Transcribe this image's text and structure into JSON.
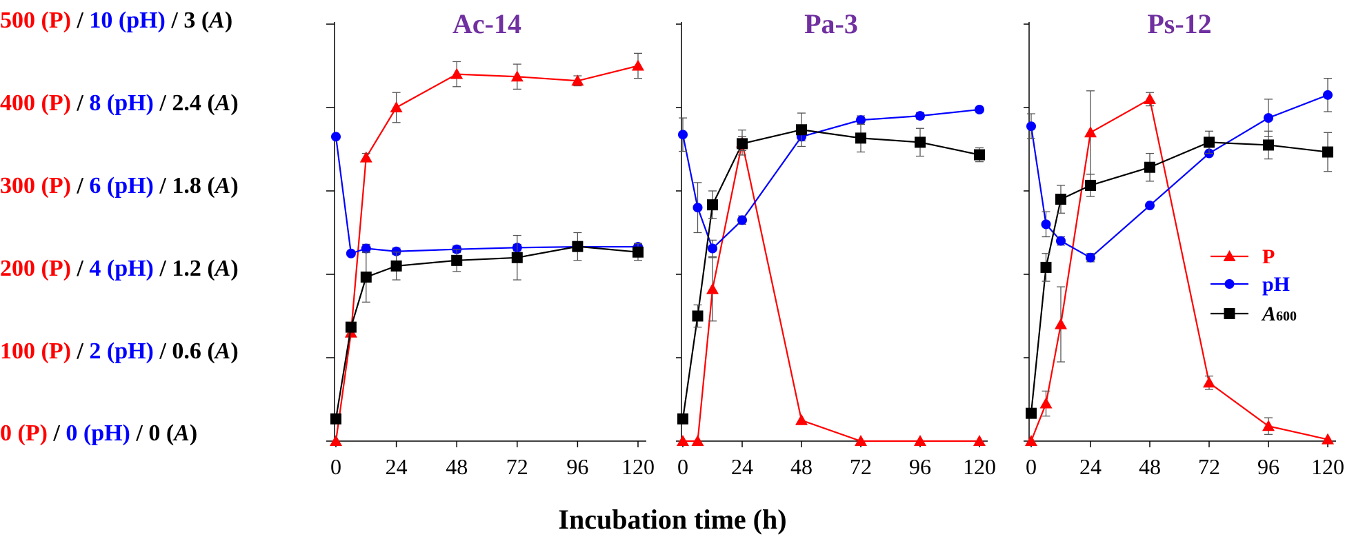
{
  "y_axis_labels": [
    {
      "p": "500 (P)",
      "sep1": "/",
      "ph": "10 (pH)",
      "sep2": "/",
      "a_num": "3",
      "a_unit": "A"
    },
    {
      "p": "400 (P)",
      "sep1": "/",
      "ph": "8 (pH)",
      "sep2": "/",
      "a_num": "2.4",
      "a_unit": "A"
    },
    {
      "p": "300 (P)",
      "sep1": "/",
      "ph": "6 (pH)",
      "sep2": "/",
      "a_num": "1.8",
      "a_unit": "A"
    },
    {
      "p": "200 (P)",
      "sep1": "/",
      "ph": "4 (pH)",
      "sep2": "/",
      "a_num": "1.2",
      "a_unit": "A"
    },
    {
      "p": "100 (P)",
      "sep1": "/",
      "ph": "2 (pH)",
      "sep2": "/",
      "a_num": "0.6",
      "a_unit": "A"
    },
    {
      "p": "0 (P)",
      "sep1": "/",
      "ph": "0 (pH)",
      "sep2": "/",
      "a_num": "0",
      "a_unit": "A"
    }
  ],
  "x_title": "Incubation time (h)",
  "legend": {
    "p": "P",
    "ph": "pH",
    "a_letter": "A",
    "a_sub": "600"
  },
  "colors": {
    "p": "#ff0000",
    "ph": "#0000ff",
    "a": "#000000",
    "title": "#7030a0"
  },
  "chart_data": [
    {
      "type": "line",
      "title": "Ac-14",
      "xlabel": "Incubation time (h)",
      "ylabel": "500 (P) / 10 (pH) / 3 (A)",
      "xticks": [
        0,
        24,
        48,
        72,
        96,
        120
      ],
      "xlim": [
        0,
        120
      ],
      "ylim": [
        0,
        500
      ],
      "series": [
        {
          "name": "P",
          "marker": "triangle",
          "x": [
            0,
            6,
            12,
            24,
            48,
            72,
            96,
            120
          ],
          "values": [
            0,
            130,
            340,
            400,
            440,
            437,
            432,
            450
          ],
          "errors": [
            0,
            0,
            5,
            18,
            15,
            15,
            6,
            15
          ]
        },
        {
          "name": "pH",
          "marker": "circle",
          "scale": 50,
          "x": [
            0,
            6,
            12,
            24,
            48,
            72,
            96,
            120
          ],
          "values": [
            7.3,
            4.5,
            4.62,
            4.55,
            4.6,
            4.64,
            4.66,
            4.66
          ],
          "errors": [
            0,
            0,
            0.1,
            0.08,
            0.08,
            0.08,
            0.08,
            0.08
          ]
        },
        {
          "name": "A600",
          "marker": "square",
          "scale": 166.667,
          "x": [
            0,
            6,
            12,
            24,
            48,
            72,
            96,
            120
          ],
          "values": [
            0.16,
            0.82,
            1.18,
            1.26,
            1.3,
            1.32,
            1.4,
            1.36
          ],
          "errors": [
            0,
            0,
            0.18,
            0.1,
            0.08,
            0.16,
            0.1,
            0.06
          ]
        }
      ]
    },
    {
      "type": "line",
      "title": "Pa-3",
      "xlabel": "Incubation time (h)",
      "ylabel": "500 (P) / 10 (pH) / 3 (A)",
      "xticks": [
        0,
        24,
        48,
        72,
        96,
        120
      ],
      "xlim": [
        0,
        120
      ],
      "ylim": [
        0,
        500
      ],
      "series": [
        {
          "name": "P",
          "marker": "triangle",
          "x": [
            0,
            6,
            12,
            24,
            48,
            72,
            96,
            120
          ],
          "values": [
            0,
            0,
            182,
            358,
            25,
            0,
            0,
            0
          ],
          "errors": [
            0,
            0,
            38,
            15,
            0,
            0,
            0,
            0
          ]
        },
        {
          "name": "pH",
          "marker": "circle",
          "scale": 50,
          "x": [
            0,
            6,
            12,
            24,
            48,
            72,
            96,
            120
          ],
          "values": [
            7.35,
            5.6,
            4.62,
            5.3,
            7.3,
            7.7,
            7.8,
            7.95
          ],
          "errors": [
            0.4,
            0.6,
            0.2,
            0.1,
            0.1,
            0.1,
            0.08,
            0.06
          ]
        },
        {
          "name": "A600",
          "marker": "square",
          "scale": 166.667,
          "x": [
            0,
            6,
            12,
            24,
            48,
            72,
            96,
            120
          ],
          "values": [
            0.16,
            0.9,
            1.7,
            2.14,
            2.24,
            2.18,
            2.15,
            2.06
          ],
          "errors": [
            0,
            0.08,
            0.1,
            0.05,
            0.12,
            0.1,
            0.1,
            0.05
          ]
        }
      ]
    },
    {
      "type": "line",
      "title": "Ps-12",
      "xlabel": "Incubation time (h)",
      "ylabel": "500 (P) / 10 (pH) / 3 (A)",
      "xticks": [
        0,
        24,
        48,
        72,
        96,
        120
      ],
      "xlim": [
        0,
        120
      ],
      "ylim": [
        0,
        500
      ],
      "series": [
        {
          "name": "P",
          "marker": "triangle",
          "x": [
            0,
            6,
            12,
            24,
            48,
            72,
            96,
            120
          ],
          "values": [
            0,
            45,
            140,
            370,
            410,
            70,
            18,
            2
          ],
          "errors": [
            0,
            15,
            45,
            50,
            8,
            8,
            10,
            0
          ]
        },
        {
          "name": "pH",
          "marker": "circle",
          "scale": 50,
          "x": [
            0,
            6,
            12,
            24,
            48,
            72,
            96,
            120
          ],
          "values": [
            7.55,
            5.2,
            4.8,
            4.4,
            5.65,
            6.9,
            7.75,
            8.3
          ],
          "errors": [
            0.3,
            0.3,
            0.1,
            0.1,
            0.05,
            0.05,
            0.45,
            0.4
          ]
        },
        {
          "name": "A600",
          "marker": "square",
          "scale": 166.667,
          "x": [
            0,
            6,
            12,
            24,
            48,
            72,
            96,
            120
          ],
          "values": [
            0.2,
            1.25,
            1.74,
            1.84,
            1.97,
            2.15,
            2.13,
            2.08
          ],
          "errors": [
            0,
            0.1,
            0.1,
            0.08,
            0.1,
            0.08,
            0.1,
            0.14
          ]
        }
      ]
    }
  ]
}
